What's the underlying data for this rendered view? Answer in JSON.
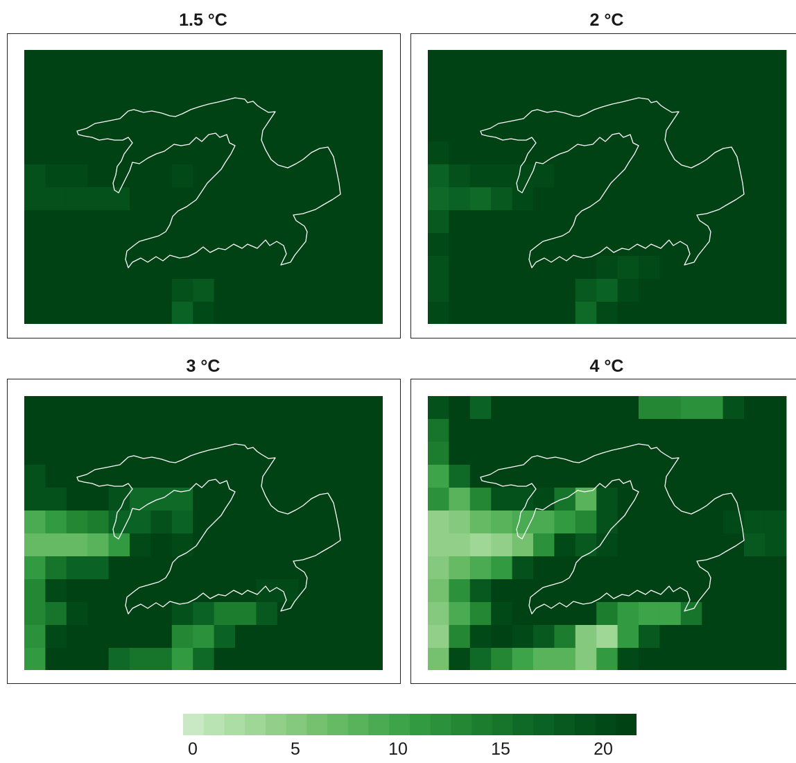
{
  "panels": [
    {
      "title": "1.5 °C",
      "grid": [
        [
          22,
          22,
          22,
          22,
          22,
          22,
          22,
          22,
          22,
          22,
          22,
          22,
          22,
          22,
          22,
          22,
          22
        ],
        [
          22,
          22,
          22,
          22,
          22,
          22,
          22,
          22,
          22,
          22,
          22,
          22,
          22,
          22,
          22,
          22,
          22
        ],
        [
          22,
          22,
          22,
          22,
          22,
          22,
          22,
          22,
          22,
          22,
          22,
          22,
          22,
          22,
          22,
          22,
          22
        ],
        [
          22,
          22,
          22,
          22,
          22,
          22,
          22,
          22,
          22,
          22,
          22,
          22,
          22,
          22,
          22,
          22,
          22
        ],
        [
          22,
          21,
          22,
          22,
          22,
          22,
          22,
          21,
          22,
          22,
          22,
          22,
          22,
          22,
          22,
          22,
          22
        ],
        [
          19,
          20,
          20,
          21,
          21,
          21,
          21,
          20,
          21,
          22,
          22,
          22,
          22,
          22,
          22,
          22,
          22
        ],
        [
          19,
          19,
          19,
          19,
          19,
          21,
          22,
          21,
          22,
          22,
          22,
          22,
          22,
          22,
          22,
          22,
          22
        ],
        [
          21,
          21,
          21,
          21,
          22,
          22,
          22,
          22,
          22,
          22,
          22,
          22,
          22,
          22,
          22,
          22,
          22
        ],
        [
          22,
          22,
          22,
          22,
          22,
          22,
          22,
          22,
          22,
          21,
          21,
          22,
          22,
          22,
          22,
          22,
          22
        ],
        [
          21,
          21,
          22,
          22,
          22,
          22,
          22,
          21,
          21,
          21,
          21,
          21,
          21,
          22,
          22,
          22,
          22
        ],
        [
          22,
          22,
          22,
          22,
          22,
          22,
          22,
          19,
          18,
          21,
          22,
          22,
          22,
          22,
          22,
          22,
          22
        ],
        [
          22,
          22,
          22,
          22,
          21,
          21,
          21,
          17,
          20,
          22,
          22,
          22,
          22,
          22,
          22,
          22,
          22
        ]
      ]
    },
    {
      "title": "2 °C",
      "grid": [
        [
          22,
          22,
          22,
          22,
          22,
          22,
          22,
          22,
          22,
          22,
          22,
          22,
          22,
          22,
          22,
          22,
          22
        ],
        [
          22,
          22,
          22,
          22,
          22,
          22,
          22,
          21,
          21,
          21,
          21,
          22,
          22,
          22,
          22,
          22,
          22
        ],
        [
          22,
          22,
          22,
          22,
          22,
          22,
          22,
          22,
          22,
          22,
          22,
          22,
          22,
          22,
          22,
          22,
          22
        ],
        [
          21,
          22,
          22,
          22,
          22,
          22,
          22,
          22,
          22,
          22,
          22,
          22,
          22,
          22,
          22,
          22,
          22
        ],
        [
          20,
          21,
          22,
          22,
          22,
          22,
          22,
          22,
          22,
          22,
          22,
          22,
          22,
          22,
          22,
          22,
          22
        ],
        [
          17,
          19,
          20,
          20,
          20,
          20,
          21,
          21,
          21,
          22,
          22,
          22,
          22,
          22,
          22,
          21,
          21
        ],
        [
          16,
          17,
          16,
          18,
          20,
          21,
          22,
          21,
          22,
          22,
          22,
          22,
          22,
          22,
          22,
          22,
          21
        ],
        [
          18,
          22,
          22,
          22,
          22,
          22,
          22,
          22,
          22,
          22,
          22,
          22,
          22,
          22,
          22,
          22,
          22
        ],
        [
          20,
          22,
          22,
          22,
          22,
          22,
          22,
          22,
          22,
          22,
          22,
          22,
          22,
          22,
          22,
          22,
          22
        ],
        [
          19,
          21,
          22,
          22,
          22,
          22,
          22,
          22,
          20,
          19,
          20,
          21,
          22,
          22,
          22,
          22,
          22
        ],
        [
          19,
          21,
          22,
          22,
          22,
          22,
          22,
          18,
          17,
          20,
          22,
          22,
          22,
          22,
          22,
          22,
          22
        ],
        [
          20,
          21,
          22,
          21,
          21,
          21,
          21,
          16,
          20,
          22,
          22,
          22,
          22,
          22,
          22,
          22,
          22
        ]
      ]
    },
    {
      "title": "3 °C",
      "grid": [
        [
          22,
          22,
          21,
          22,
          22,
          22,
          22,
          21,
          22,
          21,
          21,
          21,
          22,
          22,
          22,
          22,
          22
        ],
        [
          21,
          22,
          22,
          22,
          22,
          22,
          22,
          21,
          22,
          22,
          22,
          22,
          22,
          22,
          22,
          22,
          22
        ],
        [
          21,
          21,
          22,
          22,
          22,
          22,
          22,
          22,
          22,
          22,
          22,
          22,
          22,
          22,
          22,
          22,
          22
        ],
        [
          19,
          21,
          22,
          22,
          22,
          22,
          22,
          22,
          22,
          22,
          22,
          22,
          22,
          22,
          22,
          22,
          22
        ],
        [
          19,
          19,
          21,
          21,
          19,
          16,
          16,
          16,
          22,
          22,
          22,
          22,
          22,
          22,
          22,
          22,
          22
        ],
        [
          9,
          11,
          13,
          14,
          17,
          17,
          19,
          17,
          22,
          22,
          22,
          22,
          22,
          22,
          21,
          21,
          21
        ],
        [
          7,
          7,
          7,
          8,
          11,
          20,
          21,
          20,
          22,
          22,
          22,
          22,
          22,
          22,
          21,
          21,
          21
        ],
        [
          11,
          15,
          17,
          17,
          21,
          22,
          22,
          22,
          22,
          22,
          22,
          22,
          22,
          22,
          22,
          22,
          22
        ],
        [
          13,
          20,
          21,
          21,
          21,
          22,
          21,
          21,
          21,
          21,
          21,
          20,
          20,
          21,
          22,
          22,
          22
        ],
        [
          13,
          15,
          20,
          21,
          22,
          22,
          22,
          19,
          17,
          14,
          14,
          18,
          22,
          22,
          22,
          22,
          22
        ],
        [
          12,
          20,
          22,
          22,
          22,
          22,
          21,
          13,
          12,
          17,
          21,
          22,
          22,
          22,
          22,
          22,
          22
        ],
        [
          11,
          22,
          22,
          22,
          16,
          15,
          15,
          11,
          16,
          22,
          22,
          22,
          22,
          22,
          22,
          22,
          22
        ]
      ]
    },
    {
      "title": "4 °C",
      "grid": [
        [
          19,
          22,
          17,
          22,
          22,
          22,
          22,
          22,
          22,
          22,
          13,
          13,
          12,
          12,
          19,
          22,
          22
        ],
        [
          15,
          22,
          22,
          21,
          22,
          22,
          22,
          22,
          22,
          22,
          22,
          22,
          22,
          22,
          22,
          22,
          22
        ],
        [
          14,
          22,
          22,
          22,
          22,
          22,
          22,
          22,
          22,
          22,
          22,
          22,
          22,
          22,
          22,
          22,
          22
        ],
        [
          10,
          16,
          21,
          22,
          22,
          22,
          22,
          22,
          22,
          22,
          22,
          22,
          22,
          22,
          22,
          22,
          22
        ],
        [
          12,
          8,
          13,
          19,
          19,
          20,
          15,
          8,
          19,
          22,
          22,
          22,
          22,
          22,
          22,
          22,
          22
        ],
        [
          4,
          5,
          7,
          8,
          9,
          9,
          11,
          13,
          19,
          22,
          22,
          22,
          22,
          22,
          20,
          19,
          19
        ],
        [
          4,
          4,
          3,
          4,
          6,
          12,
          20,
          18,
          20,
          22,
          22,
          22,
          22,
          22,
          22,
          18,
          19
        ],
        [
          5,
          7,
          9,
          11,
          19,
          22,
          21,
          22,
          22,
          22,
          22,
          22,
          22,
          22,
          21,
          22,
          22
        ],
        [
          6,
          12,
          18,
          21,
          22,
          22,
          22,
          22,
          22,
          22,
          22,
          22,
          22,
          22,
          21,
          22,
          22
        ],
        [
          5,
          9,
          13,
          20,
          22,
          22,
          22,
          22,
          14,
          11,
          10,
          10,
          15,
          22,
          22,
          22,
          22
        ],
        [
          4,
          13,
          20,
          22,
          20,
          18,
          14,
          5,
          3,
          11,
          18,
          22,
          22,
          22,
          22,
          22,
          22
        ],
        [
          6,
          20,
          16,
          13,
          10,
          8,
          8,
          5,
          11,
          20,
          22,
          22,
          22,
          22,
          22,
          22,
          22
        ]
      ]
    }
  ],
  "colorbar": {
    "ticks": [
      {
        "label": "0",
        "value": 0
      },
      {
        "label": "5",
        "value": 5
      },
      {
        "label": "10",
        "value": 10
      },
      {
        "label": "15",
        "value": 15
      },
      {
        "label": "20",
        "value": 20
      }
    ],
    "min": 0,
    "max": 22,
    "colors": [
      "#c9e9c4",
      "#bae3b4",
      "#acdda5",
      "#9fd797",
      "#92d08a",
      "#84c97d",
      "#75c170",
      "#66ba64",
      "#58b35a",
      "#4aab52",
      "#3da449",
      "#329a41",
      "#2b913b",
      "#248734",
      "#1d7d2f",
      "#16742b",
      "#0f6a27",
      "#0a6224",
      "#075920",
      "#04511c",
      "#024918",
      "#004214"
    ]
  }
}
